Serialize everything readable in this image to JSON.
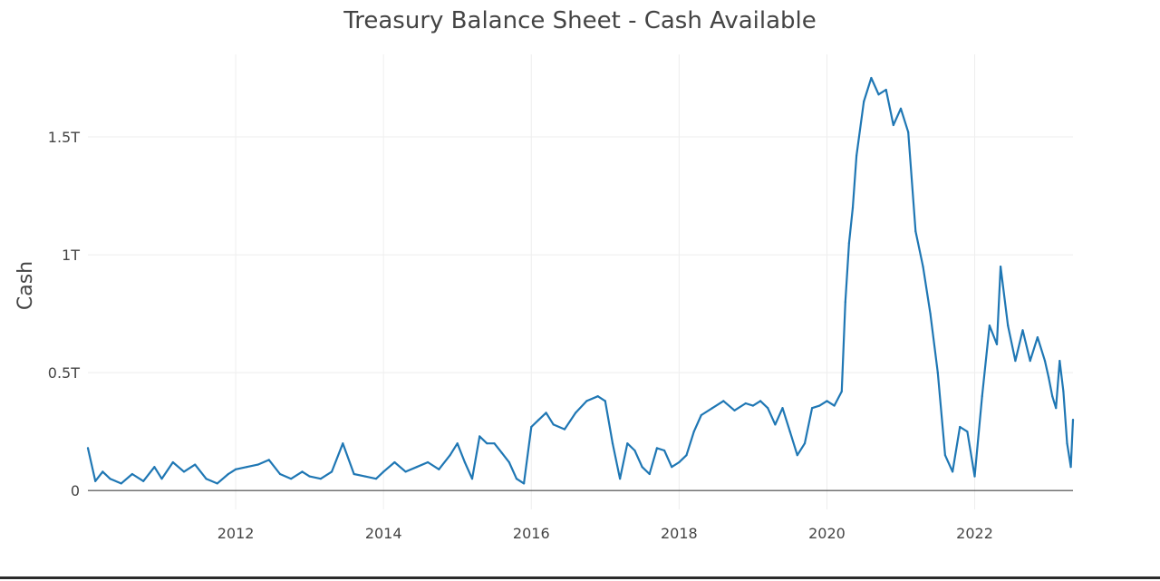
{
  "chart_data": {
    "type": "line",
    "title": "Treasury Balance Sheet - Cash Available",
    "xlabel": "",
    "ylabel": "Cash",
    "xlim": [
      2010.0,
      2023.33
    ],
    "ylim": [
      -0.08,
      1.85
    ],
    "x_ticks": [
      {
        "value": 2012,
        "label": "2012"
      },
      {
        "value": 2014,
        "label": "2014"
      },
      {
        "value": 2016,
        "label": "2016"
      },
      {
        "value": 2018,
        "label": "2018"
      },
      {
        "value": 2020,
        "label": "2020"
      },
      {
        "value": 2022,
        "label": "2022"
      }
    ],
    "y_ticks": [
      {
        "value": 0,
        "label": "0"
      },
      {
        "value": 0.5,
        "label": "0.5T"
      },
      {
        "value": 1,
        "label": "1T"
      },
      {
        "value": 1.5,
        "label": "1.5T"
      }
    ],
    "grid": true,
    "legend": "none",
    "series": [
      {
        "color": "#1f77b4",
        "x": [
          2010.0,
          2010.1,
          2010.2,
          2010.3,
          2010.45,
          2010.6,
          2010.75,
          2010.9,
          2011.0,
          2011.15,
          2011.3,
          2011.45,
          2011.6,
          2011.75,
          2011.9,
          2012.0,
          2012.15,
          2012.3,
          2012.45,
          2012.6,
          2012.75,
          2012.9,
          2013.0,
          2013.15,
          2013.3,
          2013.45,
          2013.6,
          2013.75,
          2013.9,
          2014.0,
          2014.15,
          2014.3,
          2014.45,
          2014.6,
          2014.75,
          2014.9,
          2015.0,
          2015.1,
          2015.2,
          2015.3,
          2015.4,
          2015.5,
          2015.6,
          2015.7,
          2015.8,
          2015.9,
          2016.0,
          2016.1,
          2016.2,
          2016.3,
          2016.45,
          2016.6,
          2016.75,
          2016.9,
          2017.0,
          2017.1,
          2017.2,
          2017.3,
          2017.4,
          2017.5,
          2017.6,
          2017.7,
          2017.8,
          2017.9,
          2018.0,
          2018.1,
          2018.2,
          2018.3,
          2018.45,
          2018.6,
          2018.75,
          2018.9,
          2019.0,
          2019.1,
          2019.2,
          2019.3,
          2019.4,
          2019.5,
          2019.6,
          2019.7,
          2019.8,
          2019.9,
          2020.0,
          2020.1,
          2020.2,
          2020.25,
          2020.3,
          2020.35,
          2020.4,
          2020.5,
          2020.6,
          2020.7,
          2020.8,
          2020.9,
          2021.0,
          2021.1,
          2021.2,
          2021.3,
          2021.4,
          2021.5,
          2021.6,
          2021.7,
          2021.8,
          2021.9,
          2022.0,
          2022.1,
          2022.2,
          2022.3,
          2022.35,
          2022.45,
          2022.55,
          2022.65,
          2022.75,
          2022.85,
          2022.95,
          2023.0,
          2023.05,
          2023.1,
          2023.15,
          2023.2,
          2023.25,
          2023.3,
          2023.33
        ],
        "values": [
          0.18,
          0.04,
          0.08,
          0.05,
          0.03,
          0.07,
          0.04,
          0.1,
          0.05,
          0.12,
          0.08,
          0.11,
          0.05,
          0.03,
          0.07,
          0.09,
          0.1,
          0.11,
          0.13,
          0.07,
          0.05,
          0.08,
          0.06,
          0.05,
          0.08,
          0.2,
          0.07,
          0.06,
          0.05,
          0.08,
          0.12,
          0.08,
          0.1,
          0.12,
          0.09,
          0.15,
          0.2,
          0.12,
          0.05,
          0.23,
          0.2,
          0.2,
          0.16,
          0.12,
          0.05,
          0.03,
          0.27,
          0.3,
          0.33,
          0.28,
          0.26,
          0.33,
          0.38,
          0.4,
          0.38,
          0.2,
          0.05,
          0.2,
          0.17,
          0.1,
          0.07,
          0.18,
          0.17,
          0.1,
          0.12,
          0.15,
          0.25,
          0.32,
          0.35,
          0.38,
          0.34,
          0.37,
          0.36,
          0.38,
          0.35,
          0.28,
          0.35,
          0.25,
          0.15,
          0.2,
          0.35,
          0.36,
          0.38,
          0.36,
          0.42,
          0.8,
          1.05,
          1.2,
          1.42,
          1.65,
          1.75,
          1.68,
          1.7,
          1.55,
          1.62,
          1.52,
          1.1,
          0.95,
          0.75,
          0.5,
          0.15,
          0.08,
          0.27,
          0.25,
          0.06,
          0.4,
          0.7,
          0.62,
          0.95,
          0.7,
          0.55,
          0.68,
          0.55,
          0.65,
          0.55,
          0.48,
          0.4,
          0.35,
          0.55,
          0.42,
          0.2,
          0.1,
          0.3
        ]
      }
    ]
  }
}
